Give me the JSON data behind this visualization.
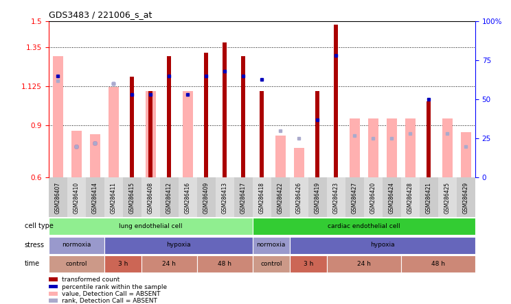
{
  "title": "GDS3483 / 221006_s_at",
  "samples": [
    "GSM286407",
    "GSM286410",
    "GSM286414",
    "GSM286411",
    "GSM286415",
    "GSM286408",
    "GSM286412",
    "GSM286416",
    "GSM286409",
    "GSM286413",
    "GSM286417",
    "GSM286418",
    "GSM286422",
    "GSM286426",
    "GSM286419",
    "GSM286423",
    "GSM286427",
    "GSM286420",
    "GSM286424",
    "GSM286428",
    "GSM286421",
    "GSM286425",
    "GSM286429"
  ],
  "transformed_count": [
    null,
    null,
    null,
    null,
    1.18,
    1.1,
    1.3,
    null,
    1.32,
    1.38,
    1.3,
    1.1,
    null,
    null,
    1.1,
    1.48,
    null,
    null,
    null,
    null,
    1.04,
    null,
    null
  ],
  "absent_value": [
    1.3,
    0.87,
    0.85,
    1.12,
    null,
    1.1,
    null,
    1.1,
    null,
    null,
    null,
    null,
    0.84,
    0.77,
    null,
    null,
    0.94,
    0.94,
    0.94,
    0.94,
    null,
    0.94,
    0.86
  ],
  "percentile_rank": [
    65,
    20,
    22,
    60,
    53,
    53,
    65,
    53,
    65,
    68,
    65,
    63,
    null,
    null,
    37,
    78,
    null,
    null,
    null,
    null,
    50,
    null,
    null
  ],
  "absent_rank": [
    62,
    20,
    22,
    60,
    null,
    null,
    null,
    null,
    null,
    null,
    null,
    null,
    30,
    25,
    null,
    null,
    27,
    25,
    25,
    28,
    null,
    28,
    20
  ],
  "ylim_left": [
    0.6,
    1.5
  ],
  "ylim_right": [
    0,
    100
  ],
  "yticks_left": [
    0.6,
    0.9,
    1.125,
    1.35,
    1.5
  ],
  "yticks_right": [
    0,
    25,
    50,
    75,
    100
  ],
  "cell_type_groups": [
    {
      "label": "lung endothelial cell",
      "start": 0,
      "end": 11,
      "color": "#90EE90"
    },
    {
      "label": "cardiac endothelial cell",
      "start": 11,
      "end": 23,
      "color": "#33CC33"
    }
  ],
  "stress_groups": [
    {
      "label": "normoxia",
      "start": 0,
      "end": 3,
      "color": "#9999CC"
    },
    {
      "label": "hypoxia",
      "start": 3,
      "end": 11,
      "color": "#6666BB"
    },
    {
      "label": "normoxia",
      "start": 11,
      "end": 13,
      "color": "#9999CC"
    },
    {
      "label": "hypoxia",
      "start": 13,
      "end": 23,
      "color": "#6666BB"
    }
  ],
  "time_groups": [
    {
      "label": "control",
      "start": 0,
      "end": 3,
      "color": "#CC9988"
    },
    {
      "label": "3 h",
      "start": 3,
      "end": 5,
      "color": "#CC6655"
    },
    {
      "label": "24 h",
      "start": 5,
      "end": 8,
      "color": "#CC8877"
    },
    {
      "label": "48 h",
      "start": 8,
      "end": 11,
      "color": "#CC8877"
    },
    {
      "label": "control",
      "start": 11,
      "end": 13,
      "color": "#CC9988"
    },
    {
      "label": "3 h",
      "start": 13,
      "end": 15,
      "color": "#CC6655"
    },
    {
      "label": "24 h",
      "start": 15,
      "end": 19,
      "color": "#CC8877"
    },
    {
      "label": "48 h",
      "start": 19,
      "end": 23,
      "color": "#CC8877"
    }
  ],
  "dark_red": "#AA0000",
  "light_pink": "#FFB0B0",
  "dark_blue": "#0000BB",
  "light_blue": "#AAAACC"
}
